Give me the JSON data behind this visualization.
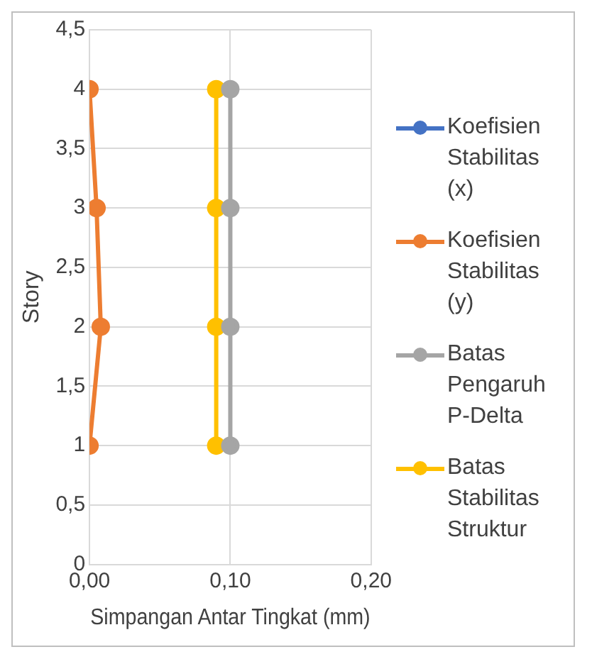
{
  "chart_data": {
    "type": "line",
    "xlabel": "Simpangan Antar Tingkat (mm)",
    "ylabel": "Story",
    "xlim": [
      0,
      0.2
    ],
    "xticks": [
      {
        "value": 0,
        "label": "0,00"
      },
      {
        "value": 0.1,
        "label": "0,10"
      },
      {
        "value": 0.2,
        "label": "0,20"
      }
    ],
    "ylim": [
      0,
      4.5
    ],
    "yticks": [
      0,
      {
        "value": 0.5,
        "label": "0,5"
      },
      1,
      {
        "value": 1.5,
        "label": "1,5"
      },
      2,
      {
        "value": 2.5,
        "label": "2,5"
      },
      3,
      {
        "value": 3.5,
        "label": "3,5"
      },
      4,
      {
        "value": 4.5,
        "label": "4,5"
      }
    ],
    "grid": true,
    "legend": "right",
    "marker": "circle",
    "line_style": "solid",
    "series": [
      {
        "name": "Koefisien Stabilitas (x)",
        "color": "#4472c4",
        "x": [
          null,
          null,
          null,
          null
        ],
        "values": [
          null,
          null,
          null,
          null
        ]
      },
      {
        "name": "Koefisien Stabilitas (y)",
        "color": "#ed7d31",
        "x": [
          0,
          0.008,
          0.005,
          0
        ],
        "values": [
          1,
          2,
          3,
          4
        ]
      },
      {
        "name": "Batas Pengaruh P-Delta",
        "color": "#a5a5a5",
        "x": [
          0.1,
          0.1,
          0.1,
          0.1
        ],
        "values": [
          1,
          2,
          3,
          4
        ]
      },
      {
        "name": "Batas Stabilitas Struktur",
        "color": "#ffc000",
        "x": [
          0.09,
          0.09,
          0.09,
          0.09
        ],
        "values": [
          1,
          2,
          3,
          4
        ]
      }
    ]
  }
}
